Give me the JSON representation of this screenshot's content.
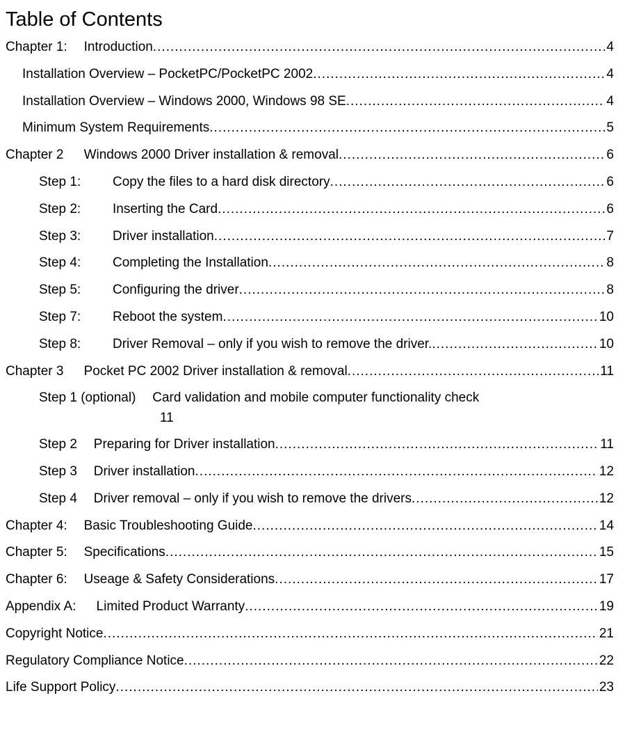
{
  "title": "Table of Contents",
  "entries": [
    {
      "indent": 0,
      "label": "Chapter 1:",
      "labelGap": "   ",
      "text": "Introduction",
      "page": "4",
      "leader": true
    },
    {
      "indent": 1,
      "label": "",
      "labelGap": "",
      "text": "Installation Overview – PocketPC/PocketPC 2002",
      "page": "4",
      "leader": true
    },
    {
      "indent": 1,
      "label": "",
      "labelGap": "",
      "text": "Installation Overview – Windows 2000, Windows 98 SE",
      "page": "4",
      "leader": true
    },
    {
      "indent": 1,
      "label": "",
      "labelGap": "",
      "text": "Minimum System Requirements",
      "page": "5",
      "leader": true
    },
    {
      "indent": 0,
      "label": "Chapter 2",
      "labelGap": "    ",
      "text": "Windows 2000 Driver installation & removal ",
      "page": "6",
      "leader": true
    },
    {
      "indent": 2,
      "label": "Step 1:",
      "labelGap": "",
      "text": "Copy the files to a hard disk directory ",
      "page": "6",
      "leader": true
    },
    {
      "indent": 2,
      "label": "Step 2:",
      "labelGap": "",
      "text": "Inserting the Card ",
      "page": "6",
      "leader": true
    },
    {
      "indent": 2,
      "label": "Step 3:",
      "labelGap": "",
      "text": "Driver installation ",
      "page": "7",
      "leader": true
    },
    {
      "indent": 2,
      "label": "Step 4:",
      "labelGap": "",
      "text": "Completing the Installation",
      "page": "8",
      "leader": true
    },
    {
      "indent": 2,
      "label": "Step 5:",
      "labelGap": "",
      "text": "Configuring the driver",
      "page": "8",
      "leader": true
    },
    {
      "indent": 2,
      "label": "Step 7:",
      "labelGap": "",
      "text": "Reboot the system ",
      "page": "10",
      "leader": true
    },
    {
      "indent": 2,
      "label": "Step 8:",
      "labelGap": "",
      "text": "Driver Removal – only if you wish to remove the driver. ",
      "page": "10",
      "leader": true
    },
    {
      "indent": 0,
      "label": "Chapter 3",
      "labelGap": "    ",
      "text": "Pocket PC 2002 Driver installation & removal ",
      "page": "11",
      "leader": true
    },
    {
      "indent": 2,
      "label": "Step 1 (optional)   ",
      "labelGap": "",
      "text": "Card validation and mobile computer functionality check",
      "page": "",
      "leader": false,
      "wrap": "11"
    },
    {
      "indent": 2,
      "label": "Step 2   ",
      "labelGap": "",
      "text": "Preparing for Driver installation ",
      "page": "11",
      "leader": true,
      "narrowLabel": true
    },
    {
      "indent": 2,
      "label": "Step 3   ",
      "labelGap": "",
      "text": "Driver installation ",
      "page": "12",
      "leader": true,
      "narrowLabel": true
    },
    {
      "indent": 2,
      "label": "Step 4   ",
      "labelGap": "",
      "text": "Driver removal – only if you wish to remove the drivers ",
      "page": "12",
      "leader": true,
      "narrowLabel": true
    },
    {
      "indent": 0,
      "label": "Chapter 4:",
      "labelGap": "   ",
      "text": "Basic Troubleshooting Guide ",
      "page": "14",
      "leader": true
    },
    {
      "indent": 0,
      "label": "Chapter 5:",
      "labelGap": "   ",
      "text": "Specifications ",
      "page": "15",
      "leader": true
    },
    {
      "indent": 0,
      "label": "Chapter 6:",
      "labelGap": "   ",
      "text": "Useage & Safety Considerations",
      "page": "17",
      "leader": true
    },
    {
      "indent": 0,
      "label": "Appendix A:",
      "labelGap": "    ",
      "text": "Limited Product Warranty ",
      "page": "19",
      "leader": true
    },
    {
      "indent": 0,
      "label": "",
      "labelGap": "",
      "text": "Copyright Notice ",
      "page": "21",
      "leader": true
    },
    {
      "indent": 0,
      "label": "",
      "labelGap": "",
      "text": "Regulatory Compliance Notice ",
      "page": "22",
      "leader": true
    },
    {
      "indent": 0,
      "label": "",
      "labelGap": "",
      "text": "Life Support Policy ",
      "page": "23",
      "leader": true
    }
  ]
}
